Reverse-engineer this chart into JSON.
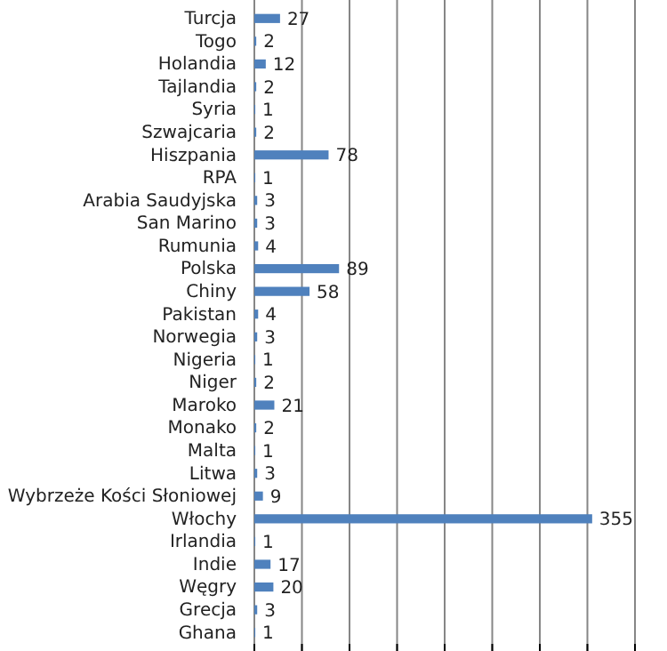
{
  "chart_data": {
    "type": "bar",
    "orientation": "horizontal",
    "categories": [
      "Turcja",
      "Togo",
      "Holandia",
      "Tajlandia",
      "Syria",
      "Szwajcaria",
      "Hiszpania",
      "RPA",
      "Arabia Saudyjska",
      "San Marino",
      "Rumunia",
      "Polska",
      "Chiny",
      "Pakistan",
      "Norwegia",
      "Nigeria",
      "Niger",
      "Maroko",
      "Monako",
      "Malta",
      "Litwa",
      "Wybrzeże Kości Słoniowej",
      "Włochy",
      "Irlandia",
      "Indie",
      "Węgry",
      "Grecja",
      "Ghana"
    ],
    "values": [
      27,
      2,
      12,
      2,
      1,
      2,
      78,
      1,
      3,
      3,
      4,
      89,
      58,
      4,
      3,
      1,
      2,
      21,
      2,
      1,
      3,
      9,
      355,
      1,
      17,
      20,
      3,
      1
    ],
    "color": "#4f81bd",
    "xlim": [
      0,
      400
    ],
    "xticks": [
      {
        "value": 0,
        "label": null
      },
      {
        "value": 50,
        "label": null
      },
      {
        "value": 100,
        "label": null
      },
      {
        "value": 150,
        "label": null
      },
      {
        "value": 200,
        "label": null
      },
      {
        "value": 250,
        "label": null
      },
      {
        "value": 300,
        "label": null
      },
      {
        "value": 350,
        "label": null
      },
      {
        "value": 400,
        "label": null
      }
    ],
    "grid": "x",
    "tick_labels": "y",
    "data_labels": true
  }
}
